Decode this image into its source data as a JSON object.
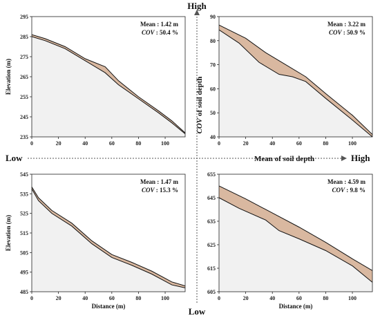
{
  "figure": {
    "high_top": "High",
    "low_left": "Low",
    "high_right": "High",
    "low_bottom": "Low",
    "cov_axis_cov": "COV",
    "cov_axis_rest": " of soil depth",
    "mean_axis_label": "Mean of soil depth"
  },
  "colors": {
    "soil": "#d9b8a0",
    "bedrock": "#f1f1f1",
    "line": "#111111",
    "axis_arrow": "#555555"
  },
  "chart_data": [
    {
      "type": "area",
      "panel": "top-left",
      "ylabel": "Elevation (m)",
      "xlabel": "",
      "xlim": [
        0,
        115
      ],
      "ylim": [
        235,
        295
      ],
      "xticks": [
        0,
        20,
        40,
        60,
        80,
        100
      ],
      "yticks": [
        235,
        245,
        255,
        265,
        275,
        285,
        295
      ],
      "mean_text": "Mean : 1.42 m",
      "cov_label": "COV",
      "cov_text": " : 50.4 %",
      "series": [
        {
          "name": "",
          "x": [
            0,
            10,
            25,
            40,
            55,
            65,
            80,
            95,
            105,
            115
          ],
          "y": [
            286,
            284,
            280,
            274,
            270,
            263,
            255,
            248,
            243,
            237
          ]
        },
        {
          "name": "",
          "x": [
            0,
            10,
            25,
            40,
            55,
            65,
            80,
            95,
            105,
            115
          ],
          "y": [
            285,
            283,
            279,
            273,
            267,
            261,
            254,
            247,
            242,
            236.5
          ]
        }
      ]
    },
    {
      "type": "area",
      "panel": "top-right",
      "ylabel": "",
      "xlabel": "",
      "xlim": [
        0,
        115
      ],
      "ylim": [
        40,
        90
      ],
      "xticks": [
        0,
        20,
        40,
        60,
        80,
        100
      ],
      "yticks": [
        40,
        50,
        60,
        70,
        80,
        90
      ],
      "mean_text": "Mean : 3.22 m",
      "cov_label": "COV",
      "cov_text": " : 50.9 %",
      "series": [
        {
          "name": "",
          "x": [
            0,
            20,
            35,
            50,
            65,
            80,
            100,
            115
          ],
          "y": [
            86.5,
            81,
            75,
            70,
            65,
            58,
            49,
            41
          ]
        },
        {
          "name": "",
          "x": [
            0,
            15,
            30,
            45,
            55,
            65,
            80,
            100,
            115
          ],
          "y": [
            84.5,
            79,
            71,
            66,
            65,
            63,
            56,
            47,
            40
          ]
        }
      ]
    },
    {
      "type": "area",
      "panel": "bottom-left",
      "ylabel": "Elevation (m)",
      "xlabel": "Distance (m)",
      "xlim": [
        0,
        115
      ],
      "ylim": [
        485,
        545
      ],
      "xticks": [
        0,
        20,
        40,
        60,
        80,
        100
      ],
      "yticks": [
        485,
        495,
        505,
        515,
        525,
        535,
        545
      ],
      "mean_text": "Mean : 1.47 m",
      "cov_label": "COV",
      "cov_text": " : 15.3 %",
      "series": [
        {
          "name": "",
          "x": [
            0,
            5,
            15,
            30,
            45,
            60,
            75,
            90,
            105,
            115
          ],
          "y": [
            538.5,
            533,
            526.5,
            520,
            511,
            504,
            500,
            495.5,
            490,
            488
          ]
        },
        {
          "name": "",
          "x": [
            0,
            5,
            15,
            30,
            45,
            60,
            75,
            90,
            105,
            115
          ],
          "y": [
            537.5,
            531.5,
            525,
            518.5,
            509.5,
            502.5,
            498.5,
            494,
            488.5,
            487
          ]
        }
      ]
    },
    {
      "type": "area",
      "panel": "bottom-right",
      "ylabel": "",
      "xlabel": "Distance (m)",
      "xlim": [
        0,
        115
      ],
      "ylim": [
        605,
        655
      ],
      "xticks": [
        0,
        20,
        40,
        60,
        80,
        100
      ],
      "yticks": [
        605,
        615,
        625,
        635,
        645,
        655
      ],
      "mean_text": "Mean : 4.59 m",
      "cov_label": "COV",
      "cov_text": " : 9.8 %",
      "series": [
        {
          "name": "",
          "x": [
            0,
            20,
            40,
            60,
            80,
            100,
            115
          ],
          "y": [
            650,
            644.5,
            638.5,
            632.5,
            626,
            619,
            614
          ]
        },
        {
          "name": "",
          "x": [
            0,
            15,
            35,
            45,
            60,
            80,
            100,
            115
          ],
          "y": [
            645,
            640.5,
            635.5,
            631,
            627.5,
            622.5,
            616,
            609
          ]
        }
      ]
    }
  ]
}
